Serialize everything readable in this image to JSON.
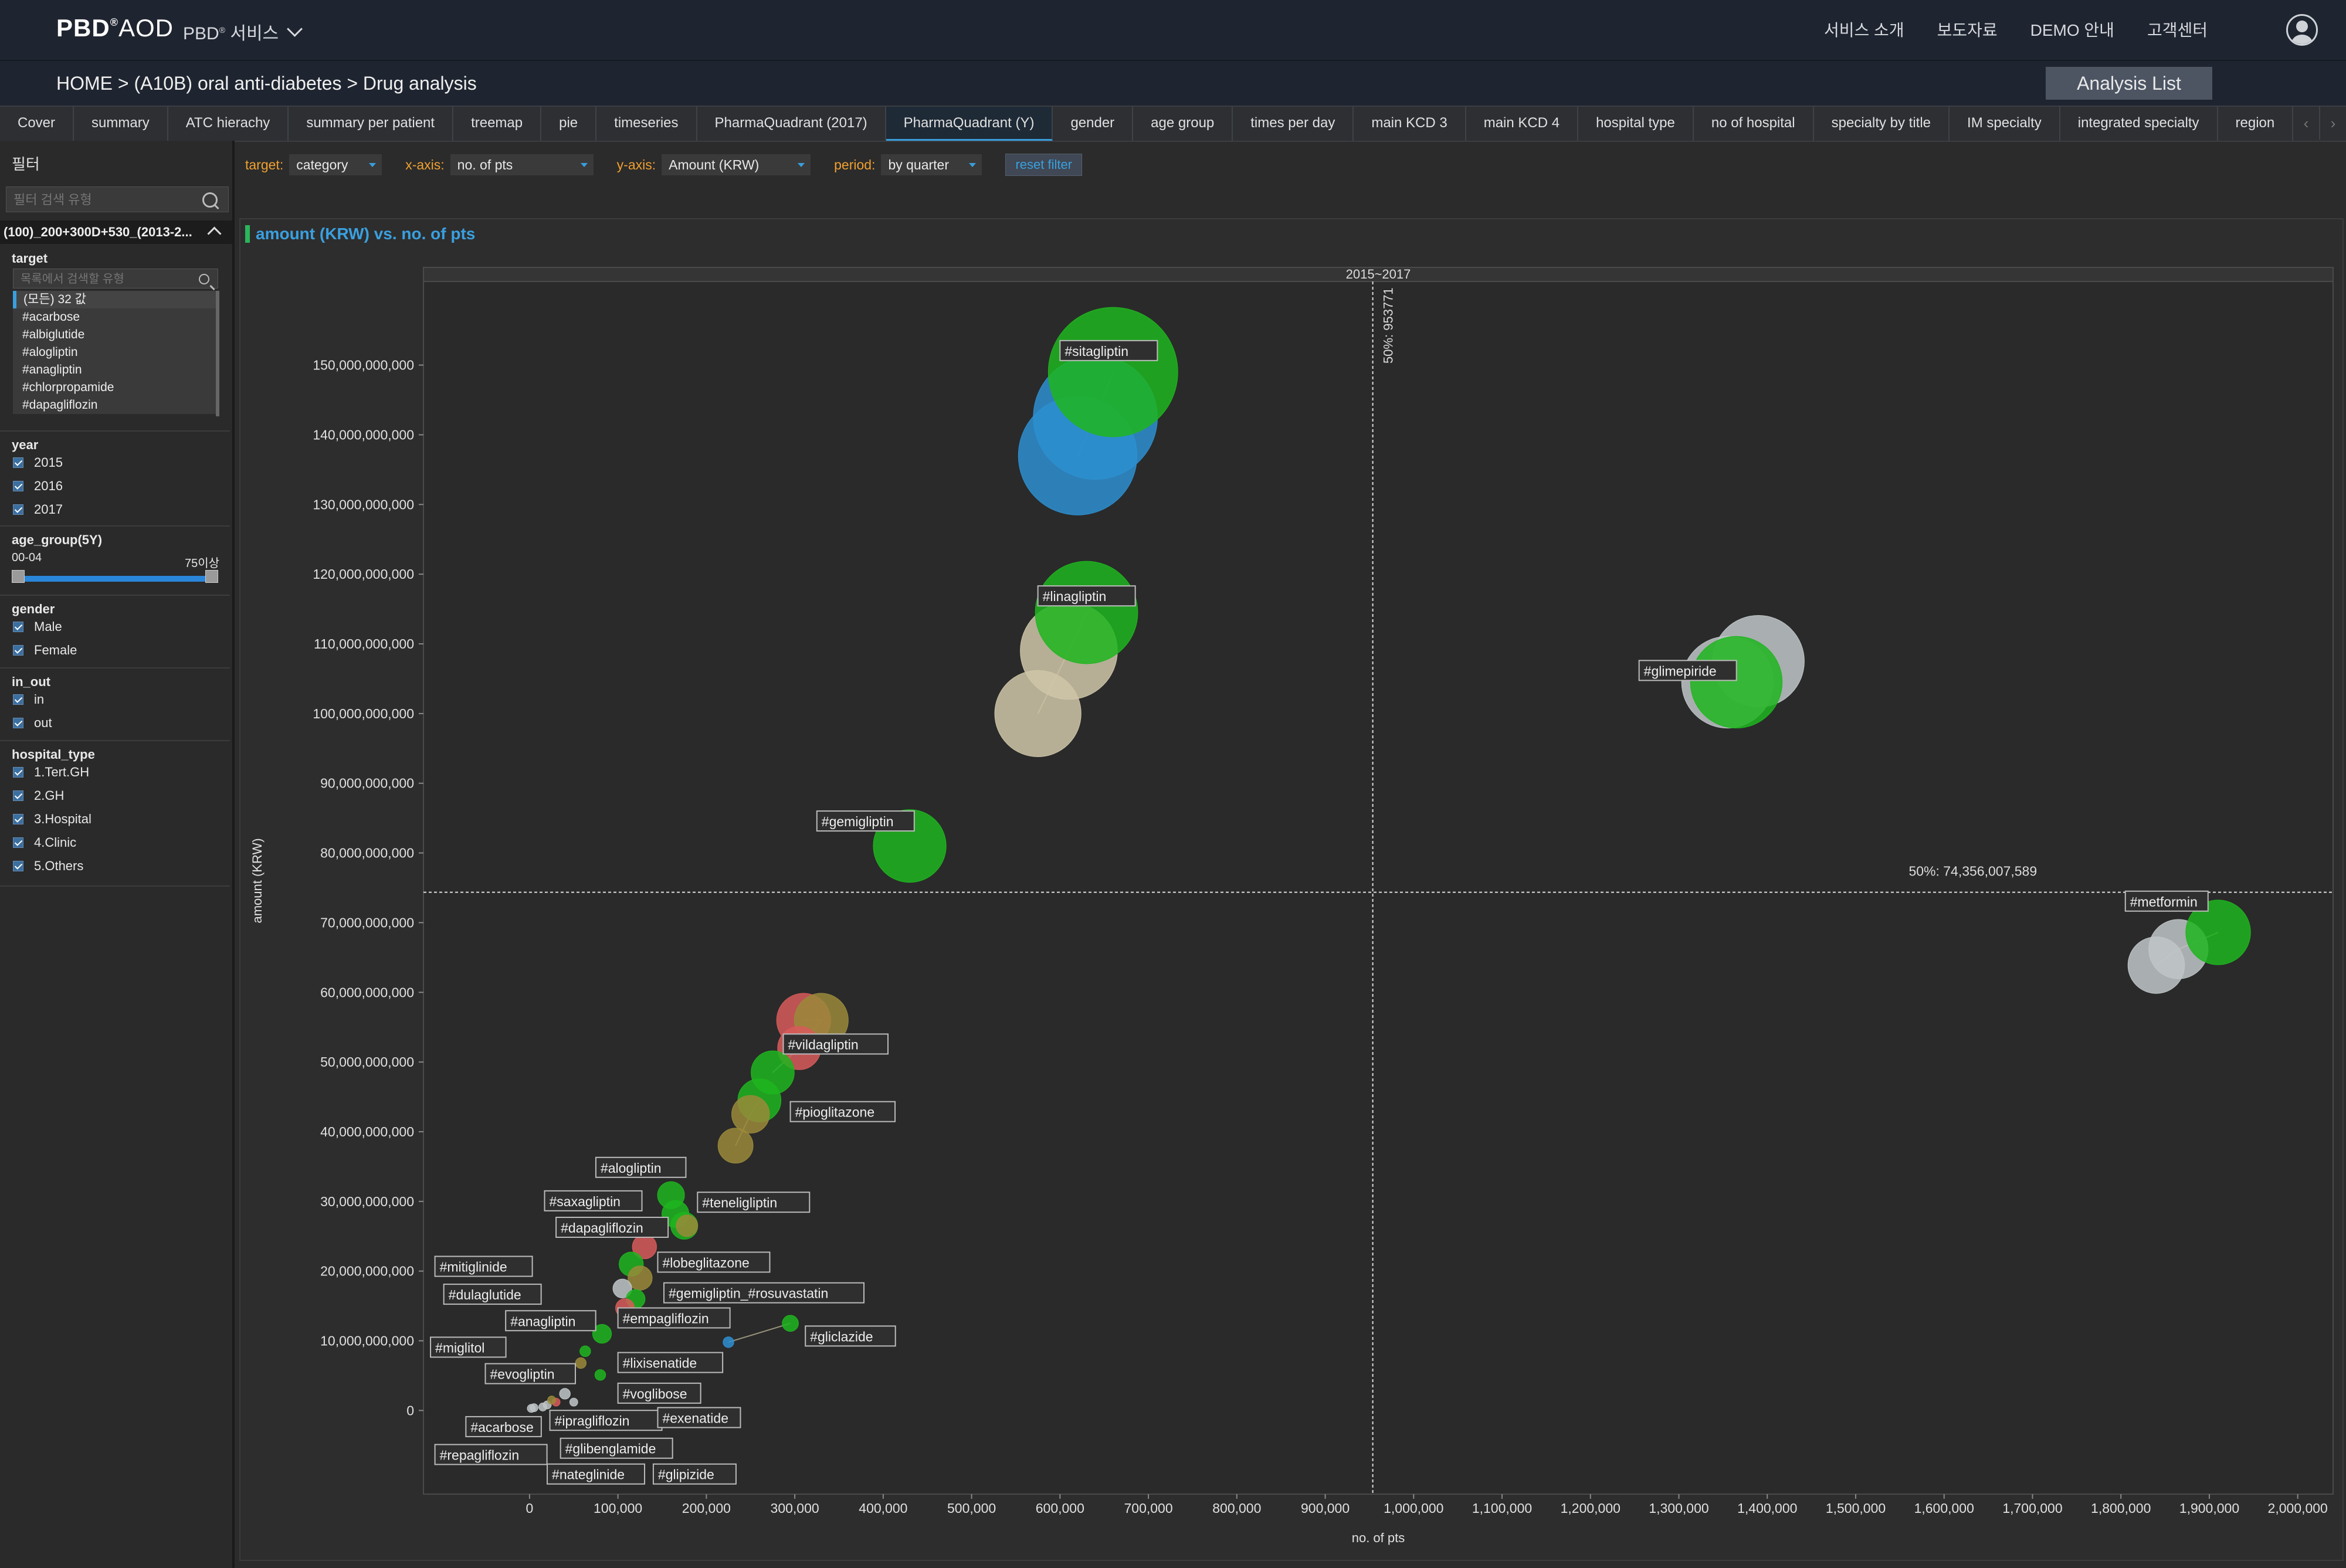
{
  "header": {
    "logo": "PBD",
    "logo_sup": "®",
    "logo_suffix": "AOD",
    "service_menu": "PBD",
    "service_menu_sup": "®",
    "service_menu_suffix": " 서비스",
    "nav": [
      "서비스 소개",
      "보도자료",
      "DEMO 안내",
      "고객센터"
    ]
  },
  "breadcrumb": "HOME >  (A10B) oral anti-diabetes > Drug analysis",
  "analysis_list_button": "Analysis List",
  "tabs": [
    "Cover",
    "summary",
    "ATC hierachy",
    "summary per patient",
    "treemap",
    "pie",
    "timeseries",
    "PharmaQuadrant (2017)",
    "PharmaQuadrant (Y)",
    "gender",
    "age group",
    "times per day",
    "main KCD 3",
    "main KCD 4",
    "hospital type",
    "no of hospital",
    "specialty by title",
    "IM specialty",
    "integrated specialty",
    "region"
  ],
  "active_tab": "PharmaQuadrant (Y)",
  "sidebar": {
    "title": "필터",
    "search_placeholder": "필터 검색 유형",
    "group_header": "(100)_200+300D+530_(2013-2...",
    "target": {
      "title": "target",
      "search_placeholder": "목록에서 검색할 유형",
      "items": [
        "(모든) 32 값",
        "#acarbose",
        "#albiglutide",
        "#alogliptin",
        "#anagliptin",
        "#chlorpropamide",
        "#dapagliflozin"
      ]
    },
    "year": {
      "title": "year",
      "items": [
        "2015",
        "2016",
        "2017"
      ]
    },
    "age_group": {
      "title": "age_group(5Y)",
      "min_label": "00-04",
      "max_label": "75이상"
    },
    "gender": {
      "title": "gender",
      "items": [
        "Male",
        "Female"
      ]
    },
    "in_out": {
      "title": "in_out",
      "items": [
        "in",
        "out"
      ]
    },
    "hospital_type": {
      "title": "hospital_type",
      "items": [
        "1.Tert.GH",
        "2.GH",
        "3.Hospital",
        "4.Clinic",
        "5.Others"
      ]
    }
  },
  "toolbar": {
    "target_label": "target:",
    "target_value": "category",
    "x_label": "x-axis:",
    "x_value": "no. of pts",
    "y_label": "y-axis:",
    "y_value": "Amount (KRW)",
    "period_label": "period:",
    "period_value": "by quarter",
    "reset_label": "reset filter"
  },
  "chart_data": {
    "type": "scatter",
    "title": "amount (KRW) vs. no. of pts",
    "panel_header": "2015~2017",
    "xlabel": "no. of pts",
    "ylabel": "amount (KRW)",
    "xlim": [
      -120000,
      2040000
    ],
    "ylim": [
      -12000000000,
      162000000000
    ],
    "x_ticks": [
      0,
      100000,
      200000,
      300000,
      400000,
      500000,
      600000,
      700000,
      800000,
      900000,
      1000000,
      1100000,
      1200000,
      1300000,
      1400000,
      1500000,
      1600000,
      1700000,
      1800000,
      1900000,
      2000000
    ],
    "x_tick_labels": [
      "0",
      "100,000",
      "200,000",
      "300,000",
      "400,000",
      "500,000",
      "600,000",
      "700,000",
      "800,000",
      "900,000",
      "1,000,000",
      "1,100,000",
      "1,200,000",
      "1,300,000",
      "1,400,000",
      "1,500,000",
      "1,600,000",
      "1,700,000",
      "1,800,000",
      "1,900,000",
      "2,000,000"
    ],
    "y_ticks": [
      0,
      10000000000,
      20000000000,
      30000000000,
      40000000000,
      50000000000,
      60000000000,
      70000000000,
      80000000000,
      90000000000,
      100000000000,
      110000000000,
      120000000000,
      130000000000,
      140000000000,
      150000000000
    ],
    "y_tick_labels": [
      "0",
      "10,000,000,000",
      "20,000,000,000",
      "30,000,000,000",
      "40,000,000,000",
      "50,000,000,000",
      "60,000,000,000",
      "70,000,000,000",
      "80,000,000,000",
      "90,000,000,000",
      "100,000,000,000",
      "110,000,000,000",
      "120,000,000,000",
      "130,000,000,000",
      "140,000,000,000",
      "150,000,000,000"
    ],
    "ref_x": 953771,
    "ref_x_label": "50%: 953771",
    "ref_y": 74356007589,
    "ref_y_label": "50%: 74,356,007,589",
    "colors": {
      "green": "#1fb51f",
      "blue": "#2d8fd0",
      "beige": "#cfc6a8",
      "gray": "#bfc6c8",
      "red": "#d85a5a",
      "olive": "#9a8a3a"
    },
    "series": [
      {
        "name": "#sitagliptin",
        "label_x": 600000,
        "label_y": 152000000000,
        "points": [
          [
            620000,
            137000000000,
            44,
            "blue"
          ],
          [
            640000,
            142500000000,
            46,
            "blue"
          ],
          [
            660000,
            149000000000,
            48,
            "green"
          ]
        ]
      },
      {
        "name": "#linagliptin",
        "label_x": 575000,
        "label_y": 116800000000,
        "points": [
          [
            575000,
            100000000000,
            32,
            "beige"
          ],
          [
            610000,
            109000000000,
            36,
            "beige"
          ],
          [
            630000,
            114500000000,
            38,
            "green"
          ]
        ]
      },
      {
        "name": "#glimepiride",
        "label_x": 1255000,
        "label_y": 106100000000,
        "points": [
          [
            1390000,
            107500000000,
            34,
            "gray"
          ],
          [
            1355000,
            104500000000,
            34,
            "gray"
          ],
          [
            1365000,
            104500000000,
            34,
            "green"
          ]
        ]
      },
      {
        "name": "#gemigliptin",
        "label_x": 325000,
        "label_y": 84500000000,
        "points": [
          [
            430000,
            81000000000,
            27,
            "green"
          ]
        ]
      },
      {
        "name": "#metformin",
        "label_x": 1805000,
        "label_y": 73000000000,
        "points": [
          [
            1840000,
            63900000000,
            21,
            "gray"
          ],
          [
            1865000,
            66200000000,
            22,
            "gray"
          ],
          [
            1910000,
            68600000000,
            24,
            "green"
          ]
        ]
      },
      {
        "name": "#vildagliptin",
        "label_x": 287000,
        "label_y": 52500000000,
        "points": [
          [
            310000,
            56000000000,
            20,
            "red"
          ],
          [
            330000,
            56000000000,
            20,
            "olive"
          ],
          [
            305000,
            52000000000,
            16,
            "red"
          ],
          [
            275000,
            48500000000,
            16,
            "green"
          ]
        ]
      },
      {
        "name": "#pioglitazone",
        "label_x": 295000,
        "label_y": 42800000000,
        "points": [
          [
            260000,
            44500000000,
            16,
            "green"
          ],
          [
            250000,
            42500000000,
            14,
            "olive"
          ],
          [
            233000,
            38000000000,
            13,
            "olive"
          ]
        ]
      },
      {
        "name": "#alogliptin",
        "label_x": 75000,
        "label_y": 34800000000,
        "points": [
          [
            160000,
            30900000000,
            10,
            "green"
          ]
        ]
      },
      {
        "name": "#saxagliptin",
        "label_x": 17000,
        "label_y": 30000000000,
        "points": [
          [
            165000,
            28200000000,
            10,
            "green"
          ]
        ]
      },
      {
        "name": "#teneligliptin",
        "label_x": 190000,
        "label_y": 29800000000,
        "points": [
          [
            175000,
            26500000000,
            10,
            "green"
          ],
          [
            178000,
            26500000000,
            8,
            "olive"
          ]
        ]
      },
      {
        "name": "#dapagliflozin",
        "label_x": 30000,
        "label_y": 26200000000,
        "points": [
          [
            130000,
            23500000000,
            9,
            "red"
          ]
        ]
      },
      {
        "name": "#mitiglinide",
        "label_x": -107000,
        "label_y": 20600000000,
        "points": [
          [
            115000,
            21000000000,
            9,
            "green"
          ]
        ]
      },
      {
        "name": "#lobeglitazone",
        "label_x": 145000,
        "label_y": 21200000000,
        "points": [
          [
            125000,
            19000000000,
            9,
            "olive"
          ]
        ]
      },
      {
        "name": "#dulaglutide",
        "label_x": -97000,
        "label_y": 16600000000,
        "points": [
          [
            105000,
            17500000000,
            7,
            "gray"
          ]
        ]
      },
      {
        "name": "#gemigliptin_#rosuvastatin",
        "label_x": 152000,
        "label_y": 16800000000,
        "points": [
          [
            120000,
            16000000000,
            7,
            "green"
          ]
        ]
      },
      {
        "name": "#anagliptin",
        "label_x": -27000,
        "label_y": 12800000000,
        "points": [
          [
            82000,
            11000000000,
            7,
            "green"
          ]
        ]
      },
      {
        "name": "#empagliflozin",
        "label_x": 100000,
        "label_y": 13200000000,
        "points": [
          [
            108000,
            14700000000,
            7,
            "red"
          ]
        ]
      },
      {
        "name": "#gliclazide",
        "label_x": 312000,
        "label_y": 10600000000,
        "points": [
          [
            295000,
            12500000000,
            6,
            "green"
          ],
          [
            225000,
            9800000000,
            4,
            "blue"
          ]
        ]
      },
      {
        "name": "#miglitol",
        "label_x": -112000,
        "label_y": 9000000000,
        "points": [
          [
            63000,
            8500000000,
            4,
            "green"
          ]
        ]
      },
      {
        "name": "#evogliptin",
        "label_x": -50000,
        "label_y": 5200000000,
        "points": [
          [
            58000,
            6800000000,
            4,
            "olive"
          ]
        ]
      },
      {
        "name": "#lixisenatide",
        "label_x": 100000,
        "label_y": 6800000000,
        "points": [
          [
            80000,
            5100000000,
            4,
            "green"
          ]
        ]
      },
      {
        "name": "#voglibose",
        "label_x": 100000,
        "label_y": 2400000000,
        "points": [
          [
            40000,
            2400000000,
            4,
            "gray"
          ]
        ]
      },
      {
        "name": "#acarbose",
        "label_x": -72000,
        "label_y": -2400000000,
        "points": [
          [
            5000,
            400000000,
            3,
            "gray"
          ]
        ]
      },
      {
        "name": "#ipragliflozin",
        "label_x": 23000,
        "label_y": -1500000000,
        "points": [
          [
            30000,
            1200000000,
            3,
            "red"
          ]
        ]
      },
      {
        "name": "#exenatide",
        "label_x": 145000,
        "label_y": -1100000000,
        "points": [
          [
            50000,
            1200000000,
            3,
            "gray"
          ]
        ]
      },
      {
        "name": "#repagliflozin",
        "label_x": -107000,
        "label_y": -6400000000,
        "points": [
          [
            2000,
            300000000,
            3,
            "gray"
          ]
        ]
      },
      {
        "name": "#glibenglamide",
        "label_x": 35000,
        "label_y": -5500000000,
        "points": [
          [
            20000,
            800000000,
            3,
            "gray"
          ]
        ]
      },
      {
        "name": "#nateglinide",
        "label_x": 20000,
        "label_y": -9200000000,
        "points": [
          [
            25000,
            1500000000,
            3,
            "olive"
          ]
        ]
      },
      {
        "name": "#glipizide",
        "label_x": 140000,
        "label_y": -9200000000,
        "points": [
          [
            15000,
            500000000,
            3,
            "gray"
          ]
        ]
      }
    ]
  }
}
